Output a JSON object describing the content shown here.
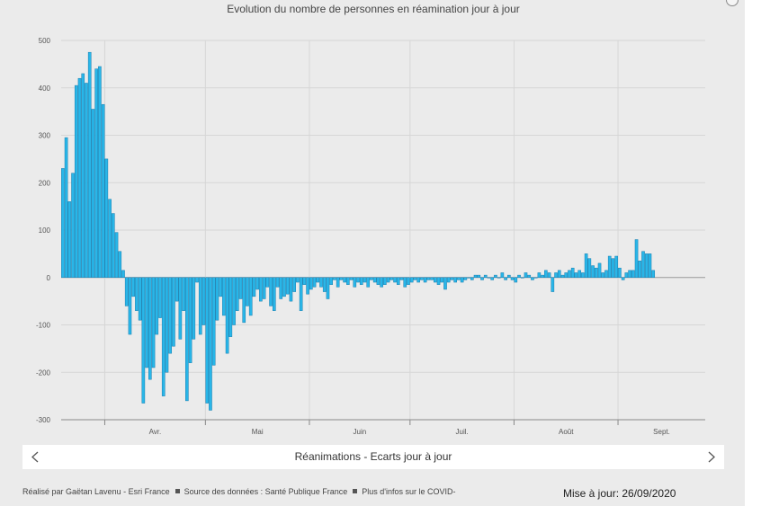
{
  "chart": {
    "title": "Evolution du nombre de personnes en réamination jour à jour",
    "nav_label": "Réanimations - Ecarts jour à jour"
  },
  "footer": {
    "author": "Réalisé par Gaëtan Lavenu - Esri France",
    "source": "Source des données : Santé Publique France",
    "more": "Plus d'infos sur le COVID-"
  },
  "update_label": "Mise à jour: 26/09/2020",
  "icons": {
    "prev": "chevron-left-icon",
    "next": "chevron-right-icon"
  },
  "colors": {
    "bar": "#29b6e8",
    "bar_stroke": "#1a7fb0",
    "background": "#ebebeb",
    "grid": "#d6d6d6"
  },
  "chart_data": {
    "type": "bar",
    "title": "Evolution du nombre de personnes en réamination jour à jour",
    "xlabel": "",
    "ylabel": "",
    "ylim": [
      -300,
      500
    ],
    "yticks": [
      -300,
      -200,
      -100,
      0,
      100,
      200,
      300,
      400,
      500
    ],
    "month_labels": [
      "Avr.",
      "Mai",
      "Juin",
      "Juil.",
      "Août",
      "Sept."
    ],
    "grid": true,
    "start_date": "2020-03-19",
    "end_date": "2020-09-26",
    "values": [
      230,
      295,
      160,
      220,
      405,
      420,
      430,
      410,
      475,
      355,
      440,
      445,
      365,
      250,
      165,
      135,
      95,
      55,
      15,
      -60,
      -120,
      -40,
      -70,
      -90,
      -265,
      -190,
      -215,
      -190,
      -120,
      -85,
      -250,
      -200,
      -160,
      -145,
      -50,
      -130,
      -70,
      -260,
      -180,
      -130,
      -10,
      -120,
      -100,
      -265,
      -280,
      -185,
      -90,
      -40,
      -80,
      -160,
      -125,
      -100,
      -70,
      -45,
      -95,
      -60,
      -80,
      -40,
      -25,
      -50,
      -45,
      -20,
      -60,
      -70,
      -20,
      -45,
      -40,
      -35,
      -50,
      -30,
      -10,
      -70,
      -15,
      -35,
      -25,
      -20,
      -10,
      -20,
      -30,
      -45,
      -15,
      -5,
      -20,
      -5,
      -10,
      -15,
      -5,
      -20,
      -10,
      -15,
      -10,
      -20,
      -5,
      -10,
      -15,
      -20,
      -15,
      -10,
      -5,
      -10,
      -15,
      -5,
      -20,
      -15,
      -10,
      -5,
      -10,
      -5,
      -10,
      -5,
      -5,
      -10,
      -15,
      -10,
      -25,
      -10,
      -5,
      -10,
      -5,
      -10,
      -5,
      0,
      -5,
      5,
      5,
      -5,
      5,
      0,
      -5,
      5,
      0,
      10,
      -5,
      5,
      -5,
      -10,
      5,
      0,
      10,
      5,
      -5,
      0,
      10,
      5,
      15,
      10,
      -30,
      10,
      15,
      5,
      10,
      15,
      20,
      10,
      15,
      10,
      50,
      40,
      25,
      20,
      30,
      10,
      15,
      45,
      40,
      45,
      20,
      -5,
      10,
      15,
      15,
      80,
      35,
      55,
      50,
      50,
      15
    ]
  }
}
